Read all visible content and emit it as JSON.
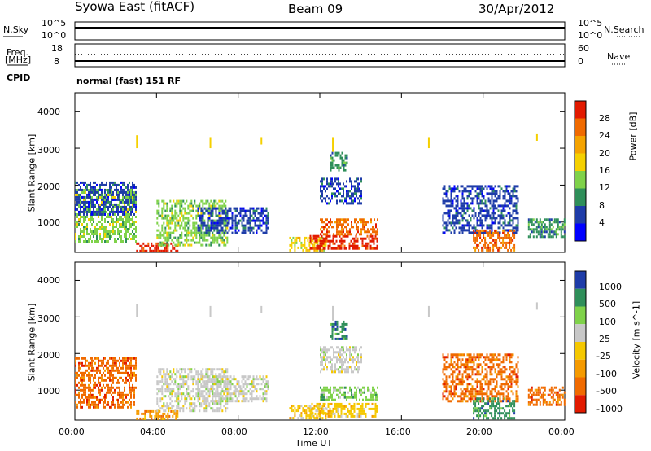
{
  "header": {
    "station": "Syowa East (fitACF)",
    "beam": "Beam 09",
    "date": "30/Apr/2012"
  },
  "top_panels": {
    "nsky_label": "N.Sky",
    "nsky_ticks": [
      "10^5",
      "10^0"
    ],
    "nsearch_label": "N.Search",
    "nsearch_ticks": [
      "10^5",
      "10^0"
    ],
    "freq_label_1": "Freq.",
    "freq_label_2": "[MHz]",
    "freq_ticks": [
      "18",
      "8"
    ],
    "nave_label": "Nave",
    "nave_ticks": [
      "60",
      "0"
    ],
    "cpid_label": "CPID",
    "cpid_value": "normal (fast) 151 RF"
  },
  "axes": {
    "ylabel": "Slant Range [km]",
    "yticks": [
      "4000",
      "3000",
      "2000",
      "1000"
    ],
    "xticks": [
      "00:00",
      "04:00",
      "08:00",
      "12:00",
      "16:00",
      "20:00",
      "00:00"
    ],
    "xlabel": "Time UT"
  },
  "colors": {
    "power": [
      "#0000ff",
      "#1e3ca8",
      "#2f8f5a",
      "#7fd24a",
      "#f5d000",
      "#f5a300",
      "#f06a00",
      "#e21a00"
    ],
    "velocity": [
      "#e21a00",
      "#f06a00",
      "#f59a00",
      "#f5c800",
      "#c8c8c8",
      "#7fd24a",
      "#2f8f5a",
      "#1e3ca8"
    ]
  },
  "chart_data": [
    {
      "type": "heatmap",
      "panel": "power",
      "colorbar_label": "Power [dB]",
      "colorbar_ticks": [
        "28",
        "24",
        "20",
        "16",
        "12",
        "8",
        "4"
      ],
      "x_range_hours": [
        0,
        24
      ],
      "y_range_km": [
        180,
        4500
      ],
      "regions": [
        {
          "t": [
            0.0,
            3.0
          ],
          "r": [
            500,
            1900
          ],
          "level": 3
        },
        {
          "t": [
            0.0,
            3.0
          ],
          "r": [
            1200,
            2100
          ],
          "level": 1
        },
        {
          "t": [
            3.0,
            5.0
          ],
          "r": [
            200,
            450
          ],
          "level": 7
        },
        {
          "t": [
            4.0,
            7.5
          ],
          "r": [
            400,
            1600
          ],
          "level": 3
        },
        {
          "t": [
            6.0,
            9.5
          ],
          "r": [
            700,
            1400
          ],
          "level": 1
        },
        {
          "t": [
            10.5,
            12.3
          ],
          "r": [
            250,
            600
          ],
          "level": 4
        },
        {
          "t": [
            11.5,
            14.8
          ],
          "r": [
            300,
            650
          ],
          "level": 7
        },
        {
          "t": [
            12.0,
            14.8
          ],
          "r": [
            700,
            1100
          ],
          "level": 6
        },
        {
          "t": [
            12.0,
            14.0
          ],
          "r": [
            1500,
            2200
          ],
          "level": 1
        },
        {
          "t": [
            12.5,
            13.3
          ],
          "r": [
            2400,
            2900
          ],
          "level": 2
        },
        {
          "t": [
            18.0,
            21.7
          ],
          "r": [
            700,
            2000
          ],
          "level": 1
        },
        {
          "t": [
            19.5,
            21.5
          ],
          "r": [
            250,
            800
          ],
          "level": 6
        },
        {
          "t": [
            22.2,
            24.0
          ],
          "r": [
            600,
            1100
          ],
          "level": 2
        }
      ],
      "sporadic": [
        {
          "t": 3.0,
          "r": [
            3000,
            3350
          ]
        },
        {
          "t": 6.6,
          "r": [
            3000,
            3300
          ]
        },
        {
          "t": 9.1,
          "r": [
            3100,
            3300
          ]
        },
        {
          "t": 12.6,
          "r": [
            2900,
            3300
          ]
        },
        {
          "t": 17.3,
          "r": [
            3000,
            3300
          ]
        },
        {
          "t": 22.6,
          "r": [
            3200,
            3400
          ]
        }
      ]
    },
    {
      "type": "heatmap",
      "panel": "velocity",
      "colorbar_label": "Velocity [m s^-1]",
      "colorbar_ticks": [
        "1000",
        "500",
        "100",
        "25",
        "-25",
        "-100",
        "-500",
        "-1000"
      ],
      "x_range_hours": [
        0,
        24
      ],
      "y_range_km": [
        180,
        4500
      ],
      "regions": [
        {
          "t": [
            0.0,
            3.0
          ],
          "r": [
            500,
            1900
          ],
          "level": 1
        },
        {
          "t": [
            3.0,
            5.0
          ],
          "r": [
            200,
            450
          ],
          "level": 2
        },
        {
          "t": [
            4.0,
            7.5
          ],
          "r": [
            400,
            1600
          ],
          "level": 4
        },
        {
          "t": [
            6.0,
            9.5
          ],
          "r": [
            700,
            1400
          ],
          "level": 4
        },
        {
          "t": [
            10.5,
            12.3
          ],
          "r": [
            250,
            600
          ],
          "level": 3
        },
        {
          "t": [
            11.5,
            14.8
          ],
          "r": [
            300,
            650
          ],
          "level": 3
        },
        {
          "t": [
            12.0,
            14.8
          ],
          "r": [
            700,
            1100
          ],
          "level": 5
        },
        {
          "t": [
            12.0,
            14.0
          ],
          "r": [
            1500,
            2200
          ],
          "level": 4
        },
        {
          "t": [
            12.5,
            13.3
          ],
          "r": [
            2400,
            2900
          ],
          "level": 6
        },
        {
          "t": [
            18.0,
            21.7
          ],
          "r": [
            700,
            2000
          ],
          "level": 1
        },
        {
          "t": [
            19.5,
            21.5
          ],
          "r": [
            250,
            800
          ],
          "level": 6
        },
        {
          "t": [
            22.2,
            24.0
          ],
          "r": [
            600,
            1100
          ],
          "level": 1
        }
      ],
      "sporadic": [
        {
          "t": 3.0,
          "r": [
            3000,
            3350
          ]
        },
        {
          "t": 6.6,
          "r": [
            3000,
            3300
          ]
        },
        {
          "t": 9.1,
          "r": [
            3100,
            3300
          ]
        },
        {
          "t": 12.6,
          "r": [
            2900,
            3300
          ]
        },
        {
          "t": 17.3,
          "r": [
            3000,
            3300
          ]
        },
        {
          "t": 22.6,
          "r": [
            3200,
            3400
          ]
        }
      ]
    }
  ]
}
